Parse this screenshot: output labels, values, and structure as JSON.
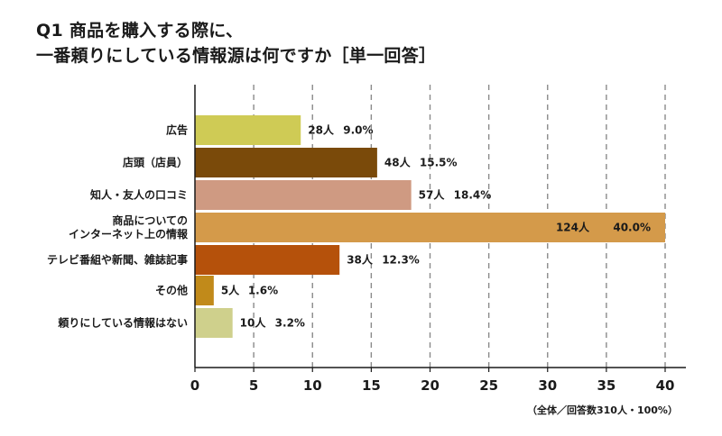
{
  "title": {
    "line1": "Q1 商品を購入する際に、",
    "line2": "一番頼りにしている情報源は何ですか［単一回答］"
  },
  "note": "（全体／回答数310人・100%）",
  "chart_data": {
    "type": "bar",
    "orientation": "horizontal",
    "categories": [
      [
        "広告"
      ],
      [
        "店頭（店員）"
      ],
      [
        "知人・友人の口コミ"
      ],
      [
        "商品についての",
        "インターネット上の情報"
      ],
      [
        "テレビ番組や新聞、雑誌記事"
      ],
      [
        "その他"
      ],
      [
        "頼りにしている情報はない"
      ]
    ],
    "values": [
      9.0,
      15.5,
      18.4,
      40.0,
      12.3,
      1.6,
      3.2
    ],
    "counts": [
      "28人",
      "48人",
      "57人",
      "124人",
      "38人",
      "5人",
      "10人"
    ],
    "percent_labels": [
      "9.0%",
      "15.5%",
      "18.4%",
      "40.0%",
      "12.3%",
      "1.6%",
      "3.2%"
    ],
    "colors": [
      "#cfcb55",
      "#7a4a0a",
      "#cf9a82",
      "#d49a4a",
      "#b5510b",
      "#c18a1a",
      "#cfd08c"
    ],
    "xlim": [
      0,
      40
    ],
    "xticks": [
      0,
      5,
      10,
      15,
      20,
      25,
      30,
      35,
      40
    ],
    "grid": "vertical-dashed",
    "xlabel": "",
    "ylabel": ""
  }
}
